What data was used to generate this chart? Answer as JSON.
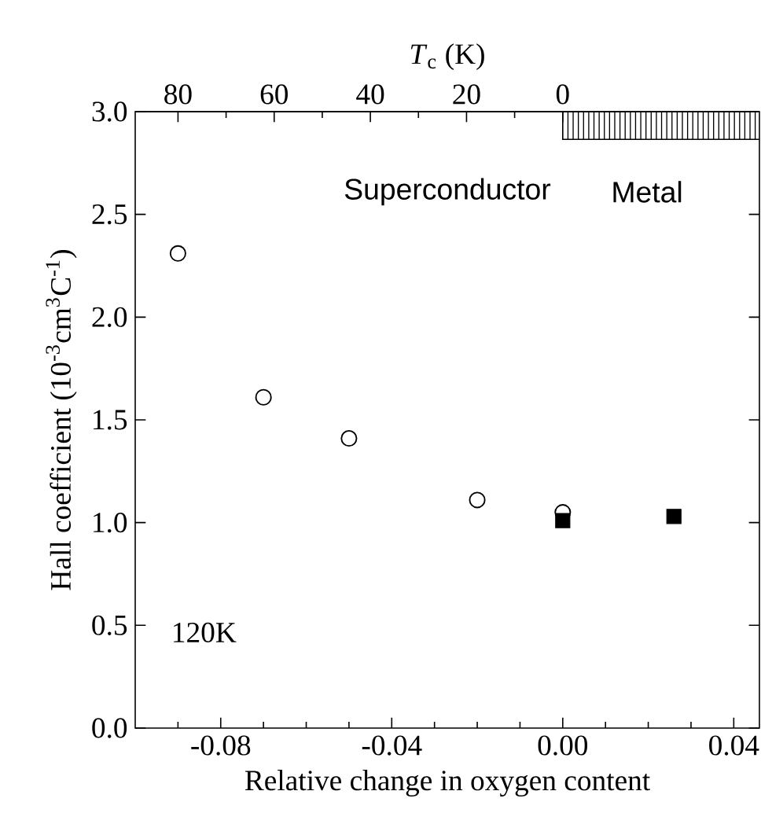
{
  "chart_data": {
    "type": "scatter",
    "xlabel": "Relative change in oxygen content",
    "ylabel": "Hall coefficient (10$^{-3}$cm$^{3}$C$^{-1}$)",
    "x2label": "*T*$_{c}$ (K)",
    "xlim": [
      -0.1,
      0.046
    ],
    "ylim": [
      0,
      3.0
    ],
    "xticks": [
      {
        "value": -0.09,
        "label": null
      },
      -0.08,
      {
        "value": -0.07,
        "label": null
      },
      {
        "value": -0.06,
        "label": null
      },
      {
        "value": -0.05,
        "label": null
      },
      -0.04,
      {
        "value": -0.03,
        "label": null
      },
      {
        "value": -0.02,
        "label": null
      },
      {
        "value": -0.01,
        "label": null
      },
      {
        "value": 0,
        "label": "0.00"
      },
      {
        "value": 0.01,
        "label": null
      },
      {
        "value": 0.02,
        "label": null
      },
      {
        "value": 0.03,
        "label": null
      },
      0.04
    ],
    "yticks": [
      {
        "value": 0,
        "label": "0.0"
      },
      0.5,
      {
        "value": 1,
        "label": "1.0"
      },
      1.5,
      {
        "value": 2,
        "label": "2.0"
      },
      2.5,
      {
        "value": 3,
        "label": "3.0"
      }
    ],
    "x2lim": [
      88.9,
      -40.9
    ],
    "x2ticks": [
      80,
      {
        "value": 70,
        "label": null
      },
      60,
      {
        "value": 50,
        "label": null
      },
      40,
      {
        "value": 30,
        "label": null
      },
      20,
      {
        "value": 10,
        "label": null
      },
      0
    ],
    "series": [
      {
        "color": "#000000",
        "marker": "circle",
        "x": [
          -0.09,
          -0.07,
          -0.05,
          -0.02,
          0.0
        ],
        "values": [
          2.31,
          1.61,
          1.41,
          1.11,
          1.05
        ]
      },
      {
        "color": "#000000",
        "marker": "square",
        "x": [
          0.0,
          0.026
        ],
        "values": [
          1.01,
          1.03
        ]
      }
    ],
    "bands": [
      {
        "axis": "x",
        "from": 0,
        "to": 0.046
      }
    ],
    "annotations": [
      "Superconductor",
      "Metal",
      "120K"
    ],
    "grid": false
  }
}
